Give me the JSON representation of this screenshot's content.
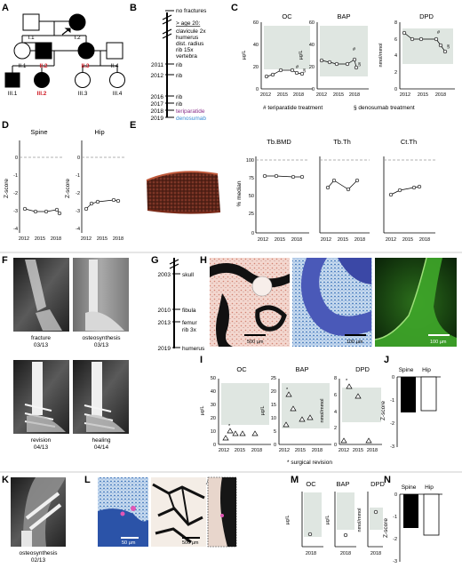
{
  "panels": [
    "A",
    "B",
    "C",
    "D",
    "E",
    "F",
    "G",
    "H",
    "I",
    "J",
    "K",
    "L",
    "M",
    "N"
  ],
  "pedigree": {
    "I": [
      "I.1",
      "I.2"
    ],
    "II": [
      "II.1",
      "II.2",
      "II.3",
      "II.4"
    ],
    "III": [
      "III.1",
      "III.2",
      "III.3",
      "III.4"
    ],
    "highlight_color": "#d0202a"
  },
  "timelineB": {
    "no_fractures": "no fractures",
    "age_heading": "> age 20:",
    "age_lines": [
      "clavicule 2x",
      "humerus",
      "dist. radius",
      "rib 15x",
      "vertebra"
    ],
    "years": [
      "2011",
      "2012",
      "2016",
      "2017",
      "2018",
      "2019"
    ],
    "events": [
      "rib",
      "rib",
      "rib",
      "rib",
      "teriparatide",
      "denosumab"
    ],
    "teriparatide_color": "#8a2f8a",
    "denosumab_color": "#3a8ed6"
  },
  "markersC": {
    "OC": {
      "title": "OC",
      "ylabel": "µg/L",
      "ticks": [
        "0",
        "20",
        "40",
        "60"
      ],
      "years": [
        "2012",
        "2015",
        "2018"
      ]
    },
    "BAP": {
      "title": "BAP",
      "ylabel": "µg/L",
      "ticks": [
        "0",
        "20",
        "40",
        "60"
      ],
      "years": [
        "2012",
        "2015",
        "2018"
      ]
    },
    "DPD": {
      "title": "DPD",
      "ylabel": "nmol/mmol",
      "ticks": [
        "0",
        "2",
        "4",
        "6",
        "8"
      ],
      "years": [
        "2012",
        "2015",
        "2018"
      ]
    },
    "marks": [
      "#",
      "§"
    ],
    "legend_teri": "# teriparatide treatment",
    "legend_deno": "§ denosumab treatment"
  },
  "zscoreD": {
    "titles": [
      "Spine",
      "Hip"
    ],
    "ylabel": "Z-score",
    "yticks": [
      "0",
      "-1",
      "-2",
      "-3",
      "-4"
    ],
    "years": [
      "2012",
      "2015",
      "2018"
    ]
  },
  "hrpqctE": {
    "titles": [
      "Tb.BMD",
      "Tb.Th",
      "Ct.Th"
    ],
    "ylabel": "% median",
    "yticks": [
      "100",
      "75",
      "50",
      "25"
    ],
    "xtick0": "0",
    "years": [
      "2012",
      "2015",
      "2018"
    ]
  },
  "xrayF": {
    "captions": [
      {
        "label": "fracture",
        "date": "03/13"
      },
      {
        "label": "osteosynthesis",
        "date": "03/13"
      },
      {
        "label": "revision",
        "date": "04/13"
      },
      {
        "label": "healing",
        "date": "04/14"
      }
    ]
  },
  "timelineG": {
    "years": [
      "2003",
      "2010",
      "2013",
      "2019"
    ],
    "events": [
      "skull",
      "fibula",
      "femur",
      "rib 3x",
      "humerus"
    ]
  },
  "histologyH": {
    "scales": [
      "500 µm",
      "100 µm",
      "100 µm"
    ]
  },
  "markersI": {
    "OC": {
      "title": "OC",
      "ylabel": "µg/L",
      "ticks": [
        "0",
        "10",
        "20",
        "30",
        "40",
        "50"
      ],
      "years": [
        "2012",
        "2015",
        "2018"
      ]
    },
    "BAP": {
      "title": "BAP",
      "ylabel": "µg/L",
      "ticks": [
        "0",
        "5",
        "10",
        "15",
        "20",
        "25"
      ],
      "years": [
        "2012",
        "2015",
        "2018"
      ]
    },
    "DPD": {
      "title": "DPD",
      "ylabel": "nmol/mmol",
      "ticks": [
        "0",
        "2",
        "4",
        "6",
        "8"
      ],
      "years": [
        "2012",
        "2015",
        "2018"
      ]
    },
    "mark": "*",
    "footnote": "* surgical revision"
  },
  "barsJ": {
    "labels": [
      "Spine",
      "Hip"
    ],
    "ylabel": "Z-score",
    "yticks": [
      "0",
      "-1",
      "-2",
      "-3"
    ]
  },
  "xrayK": {
    "label": "osteosynthesis",
    "date": "02/13"
  },
  "histologyL": {
    "scales": [
      "50 µm",
      "500 µm"
    ]
  },
  "markersM": {
    "titles": [
      "OC",
      "BAP",
      "DPD"
    ],
    "ylabels": [
      "µg/L",
      "µg/L",
      "nmol/mmol"
    ],
    "year": "2018"
  },
  "barsN": {
    "labels": [
      "Spine",
      "Hip"
    ],
    "ylabel": "Z-score",
    "yticks": [
      "0",
      "-1",
      "-2",
      "-3"
    ]
  }
}
